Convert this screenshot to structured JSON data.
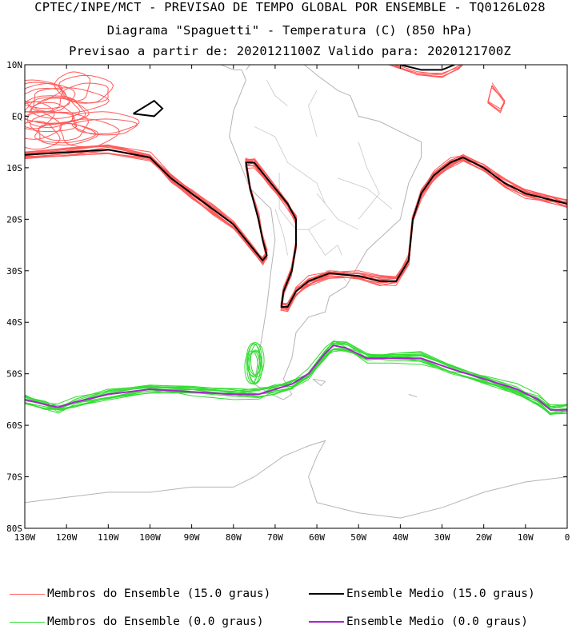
{
  "titles": {
    "line1": "CPTEC/INPE/MCT - PREVISAO DE TEMPO GLOBAL POR ENSEMBLE - TQ0126L028",
    "line2": "Diagrama \"Spaguetti\" - Temperatura (C) (850 hPa)",
    "line3": "Previsao a partir de: 2020121100Z  Valido para: 2020121700Z"
  },
  "legend": [
    {
      "label": "Membros do Ensemble (15.0 graus)",
      "color": "#ff5a5a"
    },
    {
      "label": "Ensemble Medio (15.0 graus)",
      "color": "#000000"
    },
    {
      "label": "Membros do Ensemble (0.0 graus)",
      "color": "#33dd33"
    },
    {
      "label": "Ensemble Medio (0.0 graus)",
      "color": "#aa22cc"
    }
  ],
  "chart_data": {
    "type": "line",
    "title": "Diagrama Spaguetti - Temperatura (C) (850 hPa)",
    "x_ticks": [
      "130W",
      "120W",
      "110W",
      "100W",
      "90W",
      "80W",
      "70W",
      "60W",
      "50W",
      "40W",
      "30W",
      "20W",
      "10W",
      "0"
    ],
    "y_ticks": [
      "10N",
      "EQ",
      "10S",
      "20S",
      "30S",
      "40S",
      "50S",
      "60S",
      "70S",
      "80S"
    ],
    "xlim": [
      -130,
      0
    ],
    "ylim": [
      -80,
      10
    ],
    "series": [
      {
        "name": "Ensemble Medio (15.0 graus)",
        "color": "#000000",
        "segments": [
          [
            [
              -130,
              -7.5
            ],
            [
              -120,
              -7
            ],
            [
              -110,
              -6.5
            ],
            [
              -100,
              -8
            ],
            [
              -95,
              -12
            ],
            [
              -90,
              -15
            ],
            [
              -85,
              -18
            ],
            [
              -80,
              -21
            ],
            [
              -75,
              -26
            ],
            [
              -73,
              -28
            ],
            [
              -72,
              -27
            ],
            [
              -73,
              -24
            ],
            [
              -74,
              -20
            ],
            [
              -76,
              -14
            ],
            [
              -77,
              -9
            ],
            [
              -75,
              -9
            ],
            [
              -71,
              -13
            ],
            [
              -67,
              -17
            ],
            [
              -65,
              -20
            ],
            [
              -65,
              -25
            ],
            [
              -66,
              -30
            ],
            [
              -68,
              -34
            ],
            [
              -68.5,
              -37
            ],
            [
              -67,
              -37
            ],
            [
              -65,
              -34
            ],
            [
              -62,
              -32
            ],
            [
              -57,
              -30.5
            ],
            [
              -50,
              -31
            ],
            [
              -45,
              -32
            ],
            [
              -41,
              -32
            ],
            [
              -38,
              -28
            ],
            [
              -37,
              -20
            ],
            [
              -35,
              -15
            ],
            [
              -32,
              -11.5
            ],
            [
              -28,
              -9
            ],
            [
              -25,
              -8
            ],
            [
              -20,
              -10
            ],
            [
              -15,
              -13
            ],
            [
              -10,
              -15
            ],
            [
              -5,
              -16
            ],
            [
              0,
              -17
            ]
          ],
          [
            [
              -104,
              0.5
            ],
            [
              -101,
              2
            ],
            [
              -99,
              3
            ],
            [
              -97,
              1.5
            ],
            [
              -99,
              0
            ],
            [
              -104,
              0.5
            ]
          ],
          [
            [
              -40,
              10
            ],
            [
              -35,
              9
            ],
            [
              -30,
              9
            ],
            [
              -27,
              10
            ]
          ]
        ]
      },
      {
        "name": "Ensemble Medio (0.0 graus)",
        "color": "#aa22cc",
        "segments": [
          [
            [
              -130,
              -55
            ],
            [
              -125,
              -56
            ],
            [
              -122,
              -56.5
            ],
            [
              -118,
              -55.5
            ],
            [
              -110,
              -54
            ],
            [
              -100,
              -53
            ],
            [
              -90,
              -53.5
            ],
            [
              -80,
              -54
            ],
            [
              -74,
              -54
            ],
            [
              -70,
              -53
            ],
            [
              -66,
              -52
            ],
            [
              -62,
              -50
            ],
            [
              -58,
              -46
            ],
            [
              -56,
              -44.5
            ],
            [
              -53,
              -45
            ],
            [
              -48,
              -47
            ],
            [
              -42,
              -47
            ],
            [
              -35,
              -47
            ],
            [
              -28,
              -49
            ],
            [
              -20,
              -51
            ],
            [
              -12,
              -53
            ],
            [
              -7,
              -55
            ],
            [
              -4,
              -57
            ],
            [
              0,
              -57
            ]
          ]
        ]
      }
    ]
  }
}
